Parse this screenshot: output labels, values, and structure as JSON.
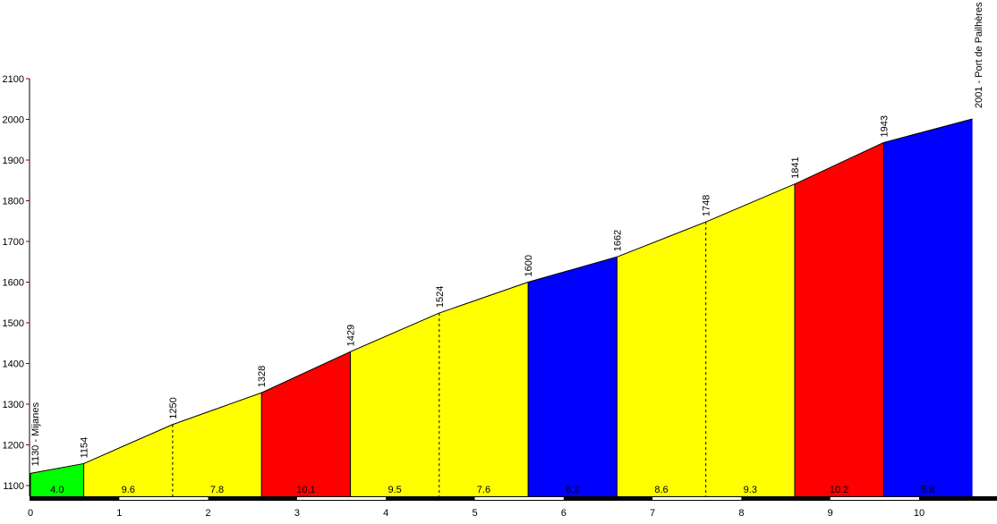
{
  "chart_data": {
    "type": "area",
    "title": "",
    "xlabel": "",
    "ylabel": "",
    "xlim": [
      0,
      10.6
    ],
    "ylim": [
      1075,
      2100
    ],
    "x_ticks": [
      "0",
      "1",
      "2",
      "3",
      "4",
      "5",
      "6",
      "7",
      "8",
      "9",
      "10"
    ],
    "y_ticks": [
      "1100",
      "1200",
      "1300",
      "1400",
      "1500",
      "1600",
      "1700",
      "1800",
      "1900",
      "2000",
      "2100"
    ],
    "start_label": "1130 - Mijanes",
    "end_label": "2001 - Port de Pailhères",
    "points": [
      {
        "km": 0,
        "alt": 1130
      },
      {
        "km": 0.6,
        "alt": 1154
      },
      {
        "km": 1.6,
        "alt": 1250
      },
      {
        "km": 2.6,
        "alt": 1328
      },
      {
        "km": 3.6,
        "alt": 1429
      },
      {
        "km": 4.6,
        "alt": 1524
      },
      {
        "km": 5.6,
        "alt": 1600
      },
      {
        "km": 6.6,
        "alt": 1662
      },
      {
        "km": 7.6,
        "alt": 1748
      },
      {
        "km": 8.6,
        "alt": 1841
      },
      {
        "km": 9.6,
        "alt": 1943
      },
      {
        "km": 10.6,
        "alt": 2001
      }
    ],
    "altitude_labels": [
      "1154",
      "1250",
      "1328",
      "1429",
      "1524",
      "1600",
      "1662",
      "1748",
      "1841",
      "1943"
    ],
    "segments": [
      {
        "gradient": "4.0",
        "color": "#00ff00"
      },
      {
        "gradient": "9.6",
        "color": "#ffff00"
      },
      {
        "gradient": "7.8",
        "color": "#ffff00"
      },
      {
        "gradient": "10.1",
        "color": "#ff0000"
      },
      {
        "gradient": "9.5",
        "color": "#ffff00"
      },
      {
        "gradient": "7.6",
        "color": "#ffff00"
      },
      {
        "gradient": "6.2",
        "color": "#0000ff"
      },
      {
        "gradient": "8.6",
        "color": "#ffff00"
      },
      {
        "gradient": "9.3",
        "color": "#ffff00"
      },
      {
        "gradient": "10.2",
        "color": "#ff0000"
      },
      {
        "gradient": "5.8",
        "color": "#0000ff"
      }
    ],
    "grid": false
  }
}
